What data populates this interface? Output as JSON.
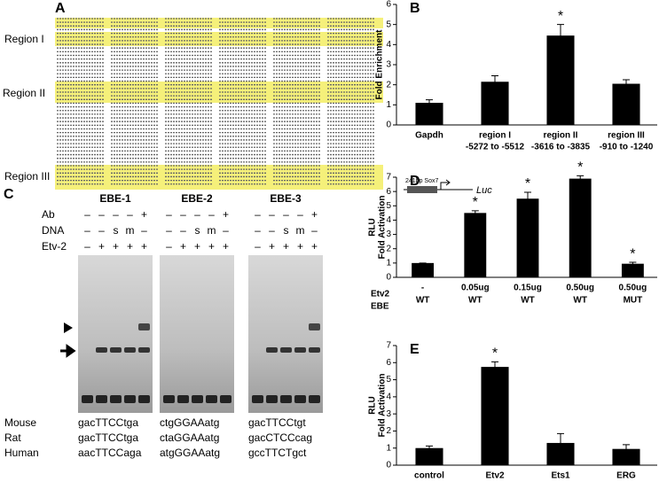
{
  "panel_a": {
    "letter": "A",
    "regions": [
      "Region I",
      "Region II",
      "Region III"
    ]
  },
  "panel_c": {
    "letter": "C",
    "probes": [
      "EBE-1",
      "EBE-2",
      "EBE-3"
    ],
    "rows": [
      {
        "label": "Ab",
        "marks": [
          "–",
          "–",
          "–",
          "–",
          "+"
        ]
      },
      {
        "label": "DNA",
        "marks": [
          "–",
          "–",
          "s",
          "m",
          "–"
        ]
      },
      {
        "label": "Etv-2",
        "marks": [
          "–",
          "+",
          "+",
          "+",
          "+"
        ]
      }
    ],
    "species": [
      {
        "name": "Mouse",
        "sequences": [
          "gacTTCCtga",
          "ctgGGAAatg",
          "gacTTCCtgt"
        ]
      },
      {
        "name": "Rat",
        "sequences": [
          "gacTTCCtga",
          "ctaGGAAatg",
          "gacCTCCcag"
        ]
      },
      {
        "name": "Human",
        "sequences": [
          "aacTTCCaga",
          "atgGGAAatg",
          "gccTTCTgct"
        ]
      }
    ]
  },
  "chart_data": [
    {
      "type": "bar",
      "letter": "B",
      "y_label": "Fold Enrichment",
      "categories": [
        [
          "Gapdh"
        ],
        [
          "region I",
          "-5272 to -5512"
        ],
        [
          "region II",
          "-3616 to -3835"
        ],
        [
          "region III",
          "-910 to -1240"
        ]
      ],
      "values": [
        1.1,
        2.15,
        4.45,
        2.05
      ],
      "errors": [
        0.15,
        0.3,
        0.55,
        0.2
      ],
      "significance": [
        null,
        null,
        "*",
        null
      ],
      "color": "#000000",
      "ylim": [
        0,
        6
      ],
      "yticks": [
        0,
        1,
        2,
        3,
        4,
        5,
        6
      ]
    },
    {
      "type": "bar",
      "letter": "D",
      "y_label": [
        "RLU",
        "Fold Activation"
      ],
      "category_rows": [
        {
          "name": "Etv2",
          "labels": [
            "-",
            "0.05ug",
            "0.15ug",
            "0.50ug",
            "0.50ug"
          ]
        },
        {
          "name": "EBE",
          "labels": [
            "WT",
            "WT",
            "WT",
            "WT",
            "MUT"
          ]
        }
      ],
      "values": [
        1.0,
        4.5,
        5.5,
        6.9,
        0.95
      ],
      "errors": [
        0,
        0.15,
        0.45,
        0.2,
        0.1
      ],
      "significance": [
        null,
        "*",
        "*",
        "*",
        "*"
      ],
      "inset": {
        "label": "241bp Sox7",
        "reporter": "Luc"
      },
      "color": "#000000",
      "ylim": [
        0,
        7
      ],
      "yticks": [
        0,
        1,
        2,
        3,
        4,
        5,
        6,
        7
      ]
    },
    {
      "type": "bar",
      "letter": "E",
      "y_label": [
        "RLU",
        "Fold Activation"
      ],
      "categories": [
        [
          "control"
        ],
        [
          "Etv2"
        ],
        [
          "Ets1"
        ],
        [
          "ERG"
        ]
      ],
      "values": [
        1.0,
        5.75,
        1.3,
        0.95
      ],
      "errors": [
        0.12,
        0.3,
        0.55,
        0.25
      ],
      "significance": [
        null,
        "*",
        null,
        null
      ],
      "color": "#000000",
      "ylim": [
        0,
        7
      ],
      "yticks": [
        0,
        1,
        2,
        3,
        4,
        5,
        6,
        7
      ]
    }
  ]
}
